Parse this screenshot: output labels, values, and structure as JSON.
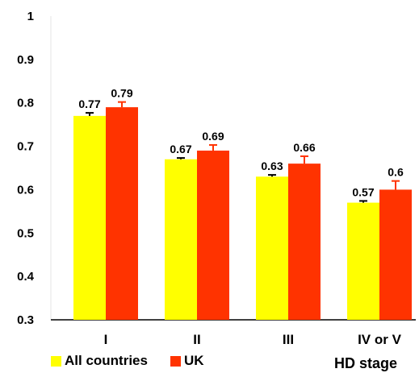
{
  "chart_data": {
    "type": "bar",
    "categories": [
      "I",
      "II",
      "III",
      "IV or V"
    ],
    "series": [
      {
        "name": "All countries",
        "color": "#ffff00",
        "values": [
          0.77,
          0.67,
          0.63,
          0.57
        ],
        "error": [
          0.007,
          0.003,
          0.004,
          0.004
        ],
        "labels": [
          "0.77",
          "0.67",
          "0.63",
          "0.57"
        ]
      },
      {
        "name": "UK",
        "color": "#ff3300",
        "values": [
          0.79,
          0.69,
          0.66,
          0.6
        ],
        "error": [
          0.012,
          0.013,
          0.017,
          0.02
        ],
        "labels": [
          "0.79",
          "0.69",
          "0.66",
          "0.6"
        ]
      }
    ],
    "title": "",
    "xlabel": "HD stage",
    "ylabel": "",
    "ylim": [
      0.3,
      1
    ],
    "yticks": [
      "0.3",
      "0.4",
      "0.5",
      "0.6",
      "0.7",
      "0.8",
      "0.9",
      "1"
    ],
    "legend_position": "bottom-left",
    "grid": false
  }
}
